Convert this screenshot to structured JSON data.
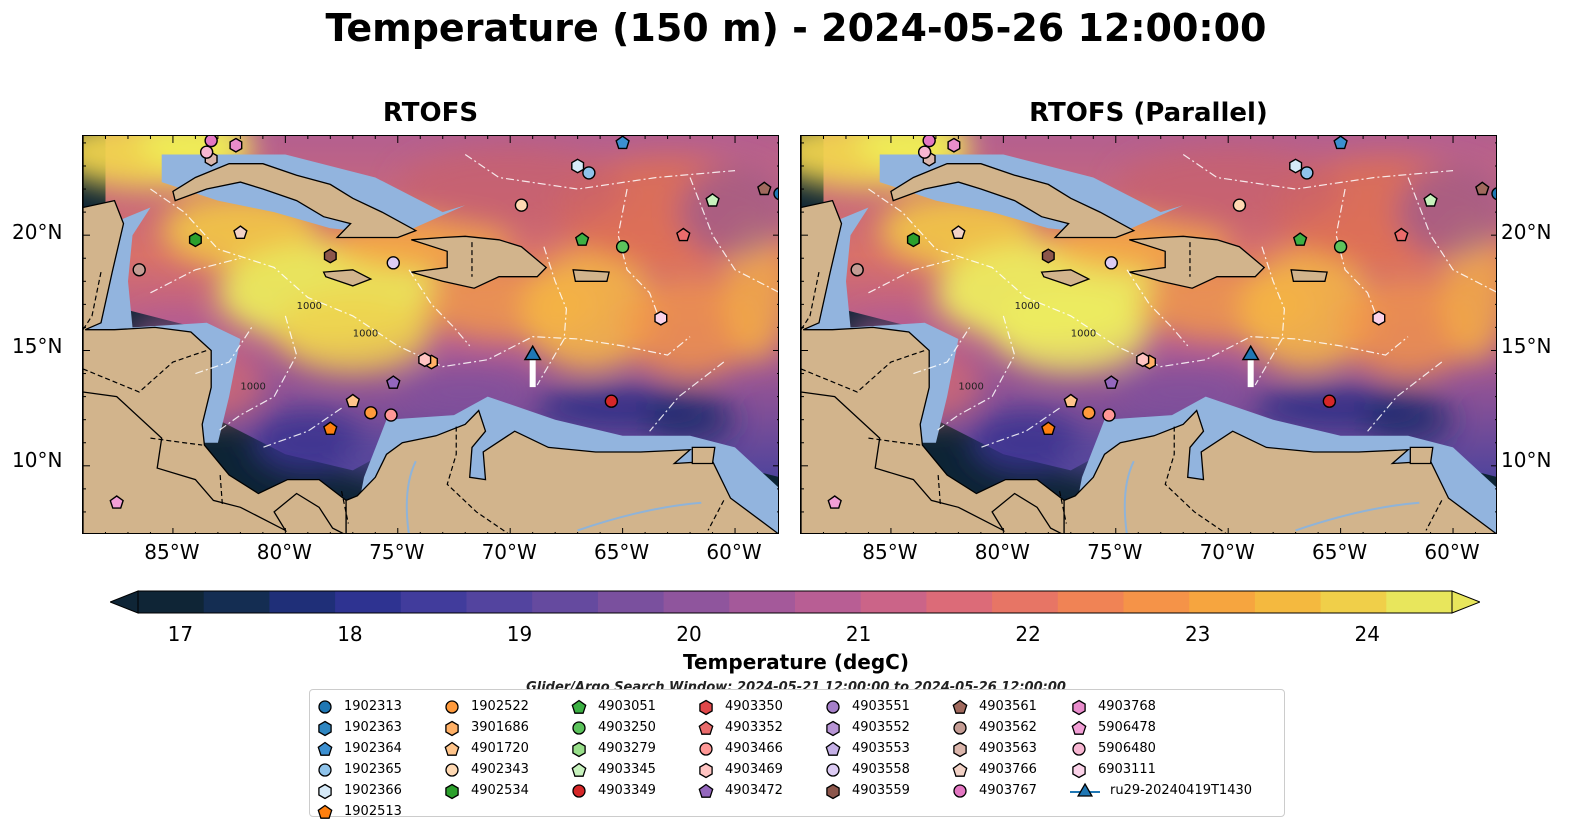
{
  "title": "Temperature (150 m) - 2024-05-26 12:00:00",
  "panels": [
    {
      "title": "RTOFS"
    },
    {
      "title": "RTOFS (Parallel)"
    }
  ],
  "axes": {
    "lon_ticks": [
      "85°W",
      "80°W",
      "75°W",
      "70°W",
      "65°W",
      "60°W"
    ],
    "lat_ticks": [
      "20°N",
      "15°N",
      "10°N"
    ]
  },
  "contour_labels": [
    "1000",
    "1000",
    "1000"
  ],
  "colorbar": {
    "label": "Temperature (degC)",
    "ticks": [
      "17",
      "18",
      "19",
      "20",
      "21",
      "22",
      "23",
      "24"
    ],
    "min": 16.75,
    "max": 24.5,
    "extend": "both",
    "colors": [
      "#0f2536",
      "#142d52",
      "#1f2f78",
      "#2e3391",
      "#413c9c",
      "#53449f",
      "#654a9f",
      "#7a509e",
      "#8f559d",
      "#a4599a",
      "#b85e94",
      "#cb6488",
      "#dc6b78",
      "#e77565",
      "#f08355",
      "#f59348",
      "#f6a53f",
      "#f4b93f",
      "#f0cf49",
      "#e8e65c"
    ]
  },
  "search_window": "Glider/Argo Search Window: 2024-05-21 12:00:00 to 2024-05-26 12:00:00",
  "legend": {
    "items": [
      {
        "label": "1902313",
        "marker": "circle",
        "color": "#1f77b4"
      },
      {
        "label": "1902363",
        "marker": "hexagon",
        "color": "#2e86c1"
      },
      {
        "label": "1902364",
        "marker": "pentagon",
        "color": "#3b8fd0"
      },
      {
        "label": "1902365",
        "marker": "circle",
        "color": "#8fc3ea"
      },
      {
        "label": "1902366",
        "marker": "hexagon",
        "color": "#d6eaf8"
      },
      {
        "label": "1902513",
        "marker": "pentagon",
        "color": "#ff7f0e"
      },
      {
        "label": "1902522",
        "marker": "circle",
        "color": "#ff9a3c"
      },
      {
        "label": "3901686",
        "marker": "hexagon",
        "color": "#ffb066"
      },
      {
        "label": "4901720",
        "marker": "pentagon",
        "color": "#ffc48a"
      },
      {
        "label": "4902343",
        "marker": "circle",
        "color": "#ffd9b3"
      },
      {
        "label": "4902534",
        "marker": "hexagon",
        "color": "#2ca02c"
      },
      {
        "label": "4903051",
        "marker": "pentagon",
        "color": "#3cb043"
      },
      {
        "label": "4903250",
        "marker": "circle",
        "color": "#5cc35c"
      },
      {
        "label": "4903279",
        "marker": "hexagon",
        "color": "#98df8a"
      },
      {
        "label": "4903345",
        "marker": "pentagon",
        "color": "#c7f2bd"
      },
      {
        "label": "4903349",
        "marker": "circle",
        "color": "#d62728"
      },
      {
        "label": "4903350",
        "marker": "hexagon",
        "color": "#e0484a"
      },
      {
        "label": "4903352",
        "marker": "pentagon",
        "color": "#ea6b6b"
      },
      {
        "label": "4903466",
        "marker": "circle",
        "color": "#ff9896"
      },
      {
        "label": "4903469",
        "marker": "hexagon",
        "color": "#ffc4c2"
      },
      {
        "label": "4903472",
        "marker": "pentagon",
        "color": "#9467bd"
      },
      {
        "label": "4903551",
        "marker": "circle",
        "color": "#a57fc8"
      },
      {
        "label": "4903552",
        "marker": "hexagon",
        "color": "#b794d4"
      },
      {
        "label": "4903553",
        "marker": "pentagon",
        "color": "#c5b0e6"
      },
      {
        "label": "4903558",
        "marker": "circle",
        "color": "#dccbf3"
      },
      {
        "label": "4903559",
        "marker": "hexagon",
        "color": "#8c564b"
      },
      {
        "label": "4903561",
        "marker": "pentagon",
        "color": "#a0695d"
      },
      {
        "label": "4903562",
        "marker": "circle",
        "color": "#c49c94"
      },
      {
        "label": "4903563",
        "marker": "hexagon",
        "color": "#dbb6ac"
      },
      {
        "label": "4903766",
        "marker": "pentagon",
        "color": "#f2d2c6"
      },
      {
        "label": "4903767",
        "marker": "circle",
        "color": "#e377c2"
      },
      {
        "label": "4903768",
        "marker": "hexagon",
        "color": "#e98ccc"
      },
      {
        "label": "5906478",
        "marker": "pentagon",
        "color": "#f29fd6"
      },
      {
        "label": "5906480",
        "marker": "circle",
        "color": "#f7b6d2"
      },
      {
        "label": "6903111",
        "marker": "hexagon",
        "color": "#fbd3e9"
      },
      {
        "label": "ru29-20240419T1430",
        "marker": "triangle-line",
        "color": "#1f77b4"
      }
    ]
  },
  "floats": [
    {
      "id": "1902313",
      "lon": -58.0,
      "lat": 21.8
    },
    {
      "id": "1902364",
      "lon": -65.0,
      "lat": 24.0
    },
    {
      "id": "1902365",
      "lon": -66.5,
      "lat": 22.7
    },
    {
      "id": "1902366",
      "lon": -67.0,
      "lat": 23.0
    },
    {
      "id": "1902513",
      "lon": -78.0,
      "lat": 11.6
    },
    {
      "id": "1902522",
      "lon": -76.2,
      "lat": 12.3
    },
    {
      "id": "3901686",
      "lon": -73.5,
      "lat": 14.5
    },
    {
      "id": "4901720",
      "lon": -77.0,
      "lat": 12.8
    },
    {
      "id": "4902343",
      "lon": -69.5,
      "lat": 21.3
    },
    {
      "id": "4902534",
      "lon": -84.0,
      "lat": 19.8
    },
    {
      "id": "4903051",
      "lon": -66.8,
      "lat": 19.8
    },
    {
      "id": "4903250",
      "lon": -65.0,
      "lat": 19.5
    },
    {
      "id": "4903345",
      "lon": -61.0,
      "lat": 21.5
    },
    {
      "id": "4903349",
      "lon": -65.5,
      "lat": 12.8
    },
    {
      "id": "4903352",
      "lon": -62.3,
      "lat": 20.0
    },
    {
      "id": "4903466",
      "lon": -75.3,
      "lat": 12.2
    },
    {
      "id": "4903469",
      "lon": -73.8,
      "lat": 14.6
    },
    {
      "id": "4903472",
      "lon": -75.2,
      "lat": 13.6
    },
    {
      "id": "4903558",
      "lon": -75.2,
      "lat": 18.8
    },
    {
      "id": "4903559",
      "lon": -78.0,
      "lat": 19.1
    },
    {
      "id": "4903561",
      "lon": -58.7,
      "lat": 22.0
    },
    {
      "id": "4903562",
      "lon": -86.5,
      "lat": 18.5
    },
    {
      "id": "4903563",
      "lon": -83.3,
      "lat": 23.3
    },
    {
      "id": "4903766",
      "lon": -82.0,
      "lat": 20.1
    },
    {
      "id": "4903767",
      "lon": -83.3,
      "lat": 24.1
    },
    {
      "id": "4903768",
      "lon": -82.2,
      "lat": 23.9
    },
    {
      "id": "5906478",
      "lon": -87.5,
      "lat": 8.4
    },
    {
      "id": "5906480",
      "lon": -83.5,
      "lat": 23.6
    },
    {
      "id": "6903111",
      "lon": -63.3,
      "lat": 16.4
    }
  ],
  "glider": {
    "id": "ru29-20240419T1430",
    "lon": -69.0,
    "lat": 14.8
  }
}
